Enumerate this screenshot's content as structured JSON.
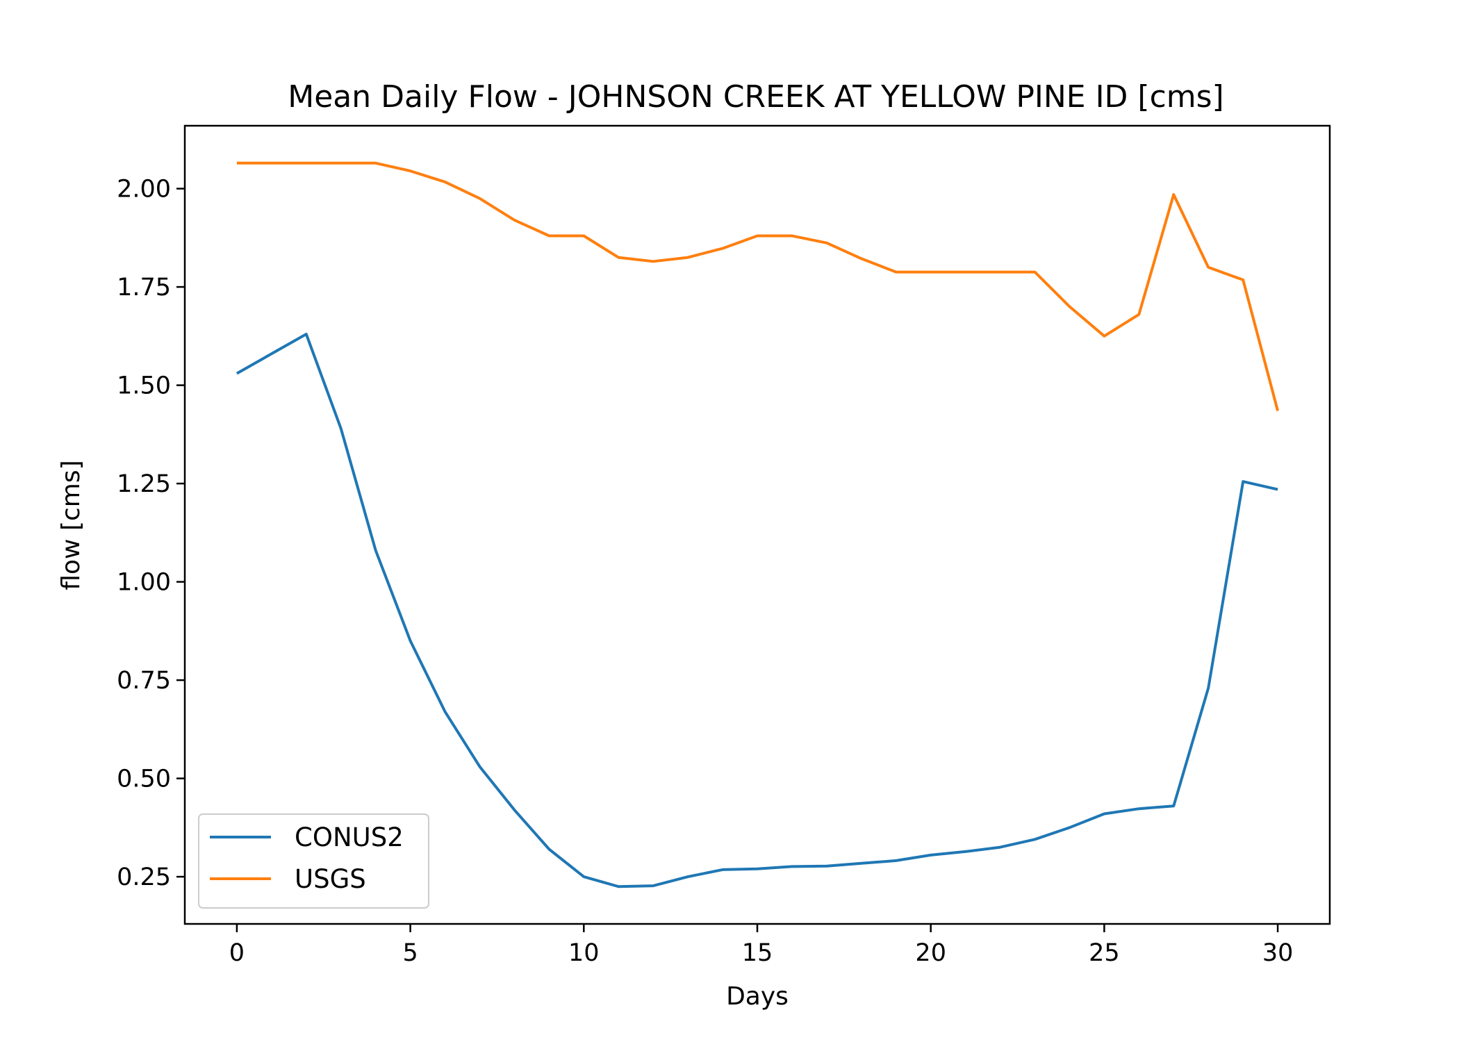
{
  "chart_data": {
    "type": "line",
    "title": "Mean Daily Flow - JOHNSON CREEK AT YELLOW PINE ID [cms]",
    "xlabel": "Days",
    "ylabel": "flow [cms]",
    "xlim": [
      -1.5,
      31.5
    ],
    "ylim": [
      0.13,
      2.16
    ],
    "xticks": [
      0,
      5,
      10,
      15,
      20,
      25,
      30
    ],
    "xtick_labels": [
      "0",
      "5",
      "10",
      "15",
      "20",
      "25",
      "30"
    ],
    "yticks": [
      0.25,
      0.5,
      0.75,
      1.0,
      1.25,
      1.5,
      1.75,
      2.0
    ],
    "ytick_labels": [
      "0.25",
      "0.50",
      "0.75",
      "1.00",
      "1.25",
      "1.50",
      "1.75",
      "2.00"
    ],
    "grid": false,
    "legend_position": "lower-left",
    "x": [
      0,
      1,
      2,
      3,
      4,
      5,
      6,
      7,
      8,
      9,
      10,
      11,
      12,
      13,
      14,
      15,
      16,
      17,
      18,
      19,
      20,
      21,
      22,
      23,
      24,
      25,
      26,
      27,
      28,
      29,
      30
    ],
    "series": [
      {
        "name": "CONUS2",
        "color": "#1f77b4",
        "values": [
          1.53,
          1.58,
          1.63,
          1.39,
          1.08,
          0.85,
          0.67,
          0.53,
          0.42,
          0.32,
          0.25,
          0.225,
          0.227,
          0.25,
          0.268,
          0.27,
          0.276,
          0.277,
          0.284,
          0.291,
          0.305,
          0.314,
          0.325,
          0.345,
          0.375,
          0.41,
          0.423,
          0.43,
          0.73,
          1.255,
          1.235
        ]
      },
      {
        "name": "USGS",
        "color": "#ff7f0e",
        "values": [
          2.065,
          2.065,
          2.065,
          2.065,
          2.065,
          2.045,
          2.017,
          1.975,
          1.92,
          1.88,
          1.88,
          1.825,
          1.815,
          1.825,
          1.848,
          1.88,
          1.88,
          1.862,
          1.822,
          1.788,
          1.788,
          1.788,
          1.788,
          1.788,
          1.7,
          1.625,
          1.68,
          1.985,
          1.8,
          1.768,
          1.435
        ]
      }
    ]
  }
}
